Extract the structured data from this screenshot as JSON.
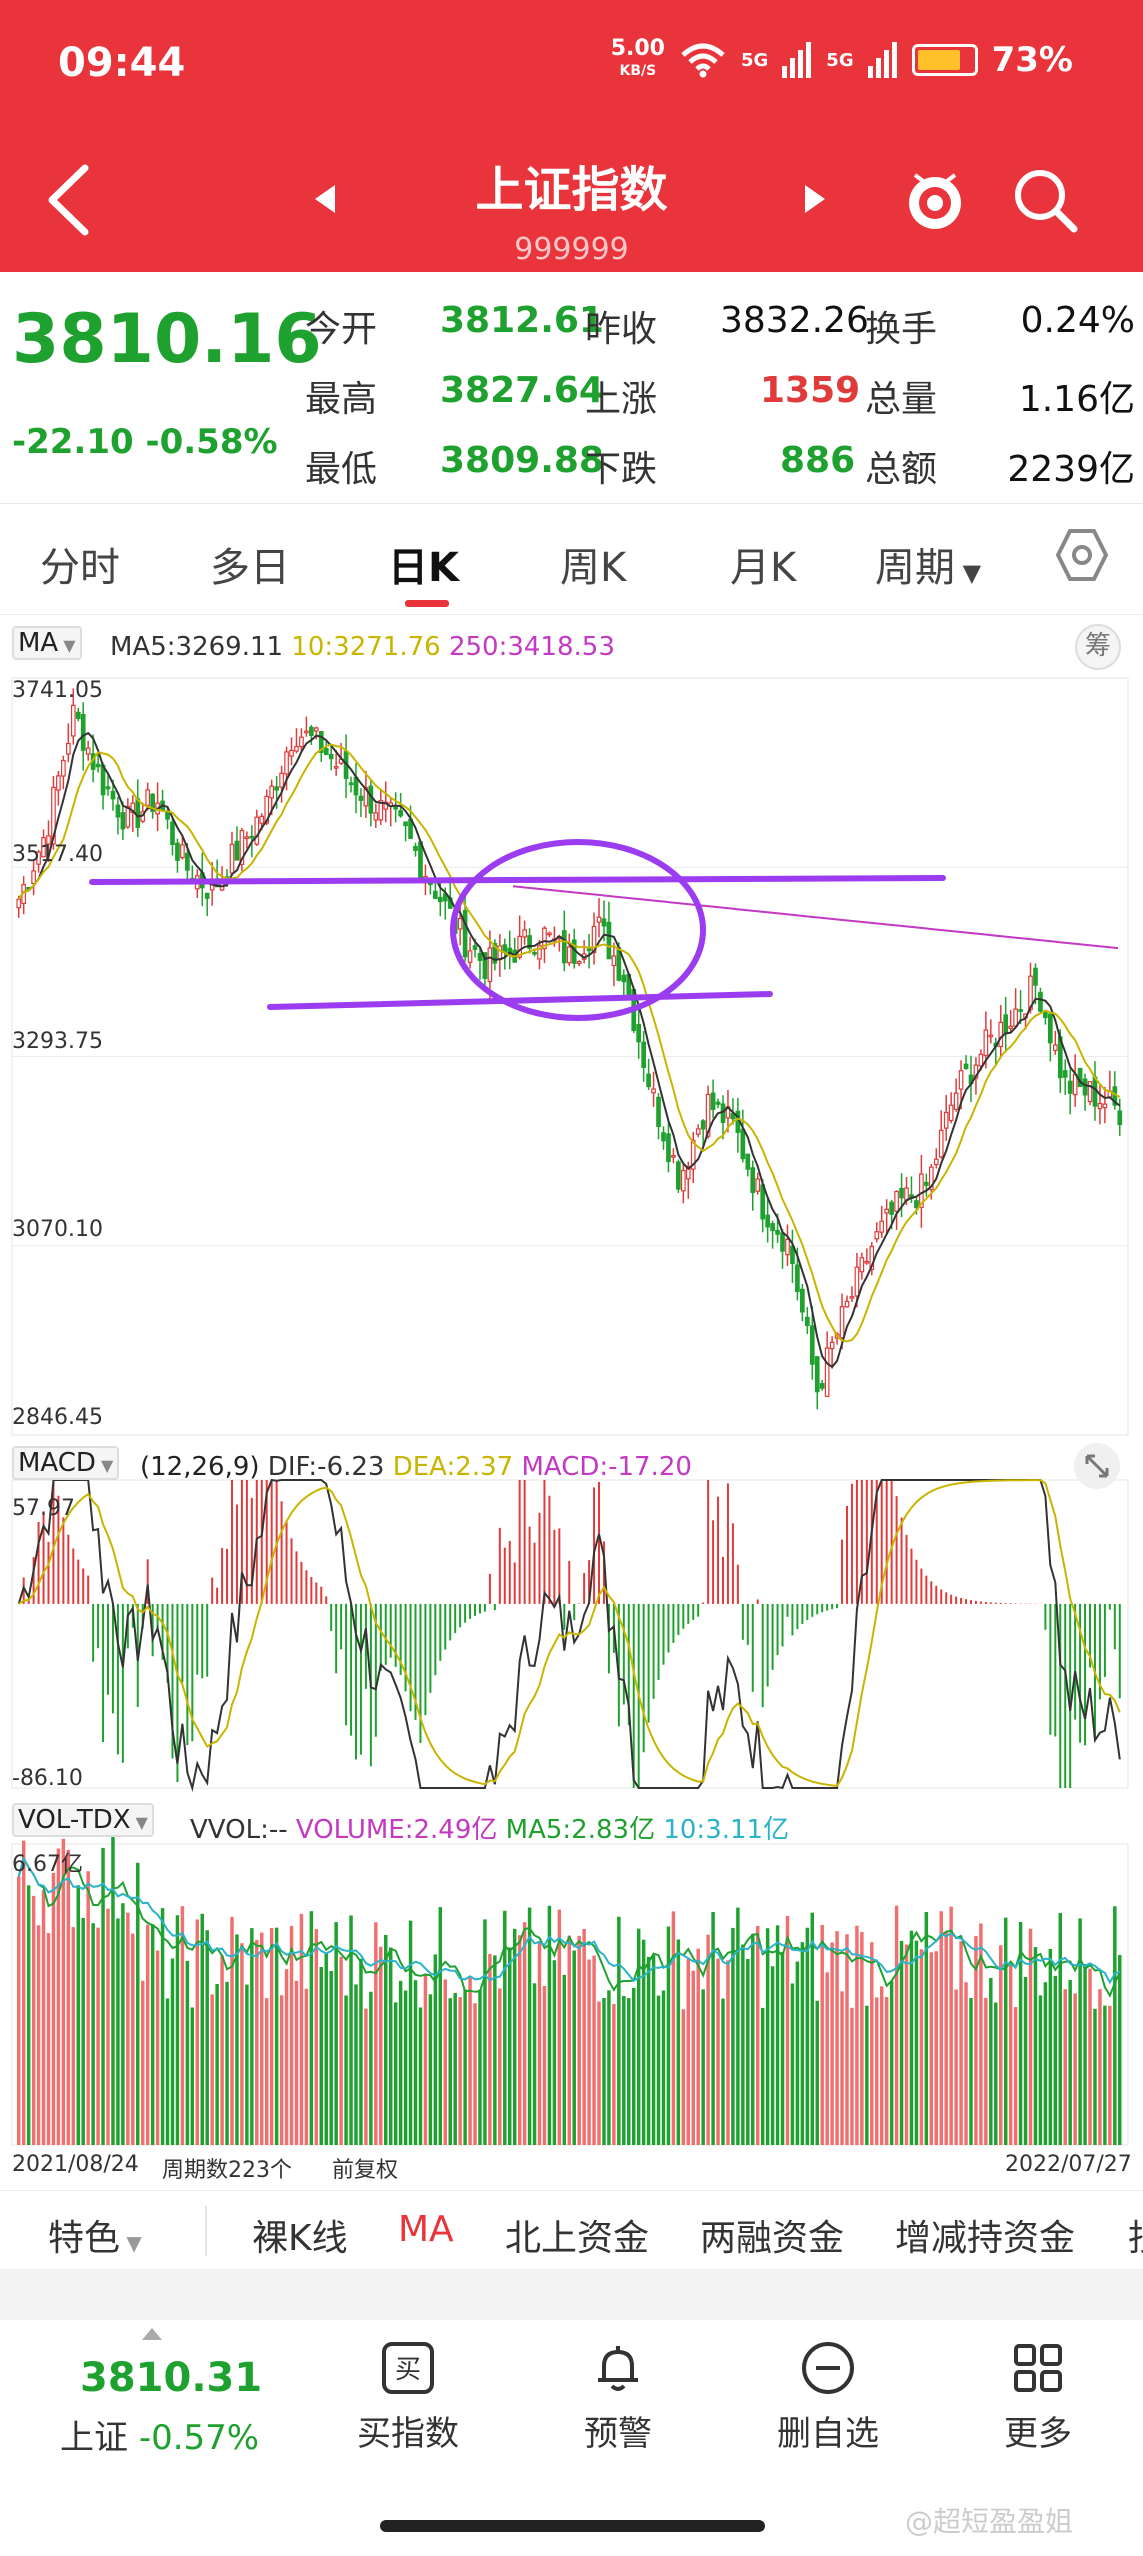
{
  "status": {
    "time": "09:44",
    "speed_value": "5.00",
    "speed_unit": "KB/S",
    "sig1": "5G",
    "sig2": "5G",
    "battery": "73%"
  },
  "header": {
    "title": "上证指数",
    "code": "999999"
  },
  "quote": {
    "price": "3810.16",
    "change": "-22.10 -0.58%",
    "rows": [
      {
        "l1": "今开",
        "v1": "3812.61",
        "l2": "昨收",
        "v2": "3832.26",
        "l3": "换手",
        "v3": "0.24%"
      },
      {
        "l1": "最高",
        "v1": "3827.64",
        "l2": "上涨",
        "v2": "1359",
        "l3": "总量",
        "v3": "1.16亿"
      },
      {
        "l1": "最低",
        "v1": "3809.88",
        "l2": "下跌",
        "v2": "886",
        "l3": "总额",
        "v3": "2239亿"
      }
    ]
  },
  "tabs": [
    "分时",
    "多日",
    "日K",
    "周K",
    "月K",
    "周期"
  ],
  "ma_panel": {
    "selector": "MA",
    "ma5": "MA5:3269.11",
    "ma10": "10:3271.76",
    "ma250": "250:3418.53",
    "chip": "筹",
    "y_labels": [
      "3741.05",
      "3517.40",
      "3293.75",
      "3070.10",
      "2846.45"
    ]
  },
  "macd_panel": {
    "selector": "MACD",
    "params": "(12,26,9)",
    "dif": "DIF:-6.23",
    "dea": "DEA:2.37",
    "macd": "MACD:-17.20",
    "y_top": "57.97",
    "y_bottom": "-86.10"
  },
  "vol_panel": {
    "selector": "VOL-TDX",
    "vvol": "VVOL:--",
    "volume": "VOLUME:2.49亿",
    "ma5": "MA5:2.83亿",
    "ma10": "10:3.11亿",
    "y_top": "6.67亿",
    "start_date": "2021/08/24",
    "period_count": "周期数223个",
    "adjust": "前复权",
    "end_date": "2022/07/27"
  },
  "bottom_tabs": {
    "special": "特色",
    "items": [
      "裸K线",
      "MA",
      "北上资金",
      "两融资金",
      "增减持资金",
      "抄"
    ]
  },
  "bottom_bar": {
    "price": "3810.31",
    "name": "上证",
    "change": "-0.57%",
    "buy": "买指数",
    "buy_icon_char": "买",
    "alert": "预警",
    "delete": "删自选",
    "more": "更多"
  },
  "watermark": "@超短盈盈姐",
  "colors": {
    "header_red": "#e8343a",
    "up_red": "#e03b3b",
    "down_green": "#1fa12f",
    "ma10": "#c9b400",
    "ma250": "#c339c3",
    "annotation": "#9b3cf0"
  },
  "chart_data": {
    "type": "candlestick",
    "title": "上证指数 日K",
    "x_range": [
      "2021/08/24",
      "2022/07/27"
    ],
    "periods": 223,
    "ylim": [
      2846.45,
      3741.05
    ],
    "y_ticks": [
      3741.05,
      3517.4,
      3293.75,
      3070.1,
      2846.45
    ],
    "approx_close_path": [
      3480,
      3560,
      3700,
      3620,
      3570,
      3600,
      3520,
      3490,
      3540,
      3590,
      3680,
      3660,
      3620,
      3590,
      3560,
      3500,
      3440,
      3400,
      3420,
      3440,
      3410,
      3450,
      3390,
      3250,
      3150,
      3240,
      3210,
      3120,
      3070,
      2900,
      2990,
      3070,
      3120,
      3140,
      3250,
      3300,
      3340,
      3380,
      3260,
      3250,
      3230
    ],
    "macd": {
      "ylim": [
        -86.1,
        57.97
      ],
      "dif": -6.23,
      "dea": 2.37,
      "macd": -17.2
    },
    "volume": {
      "ymax_label": "6.67亿",
      "volume": "2.49亿",
      "ma5": "2.83亿",
      "ma10": "3.11亿"
    }
  }
}
